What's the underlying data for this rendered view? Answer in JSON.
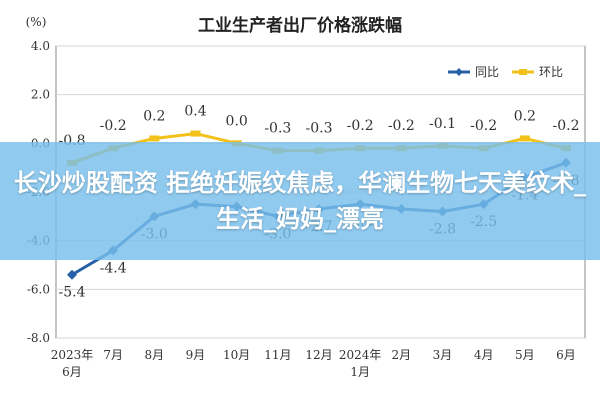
{
  "chart_data": {
    "type": "line",
    "title": "工业生产者出厂价格涨跌幅",
    "ylabel": "(%)",
    "ylim": [
      -8.0,
      4.0
    ],
    "yticks": [
      "4.0",
      "2.0",
      "0.0",
      "-2.0",
      "-4.0",
      "-6.0",
      "-8.0"
    ],
    "grid": true,
    "legend_position": "top-right",
    "categories": [
      "2023年\n6月",
      "7月",
      "8月",
      "9月",
      "10月",
      "11月",
      "12月",
      "2024年\n1月",
      "2月",
      "3月",
      "4月",
      "5月",
      "6月"
    ],
    "series": [
      {
        "name": "同比",
        "color": "#2660a9",
        "values": [
          -5.4,
          -4.4,
          -3.0,
          -2.5,
          -2.6,
          -3.0,
          -2.7,
          -2.5,
          -2.7,
          -2.8,
          -2.5,
          -1.4,
          -0.8
        ],
        "labels": [
          "-5.4",
          "-4.4",
          "-3.0",
          "",
          "",
          "-3.0",
          "-2.7",
          "-2.5",
          "",
          "-2.8",
          "-2.5",
          "-1.4",
          "-0.8"
        ]
      },
      {
        "name": "环比",
        "color": "#f2c11a",
        "values": [
          -0.8,
          -0.2,
          0.2,
          0.4,
          0.0,
          -0.3,
          -0.3,
          -0.2,
          -0.2,
          -0.1,
          -0.2,
          0.2,
          -0.2
        ],
        "labels": [
          "-0.8",
          "-0.2",
          "0.2",
          "0.4",
          "0.0",
          "-0.3",
          "-0.3",
          "-0.2",
          "-0.2",
          "-0.1",
          "-0.2",
          "0.2",
          "-0.2"
        ]
      }
    ]
  },
  "banner": {
    "text": "长沙炒股配资 拒绝妊娠纹焦虑，华澜生物七天美纹术_生活_妈妈_漂亮"
  }
}
